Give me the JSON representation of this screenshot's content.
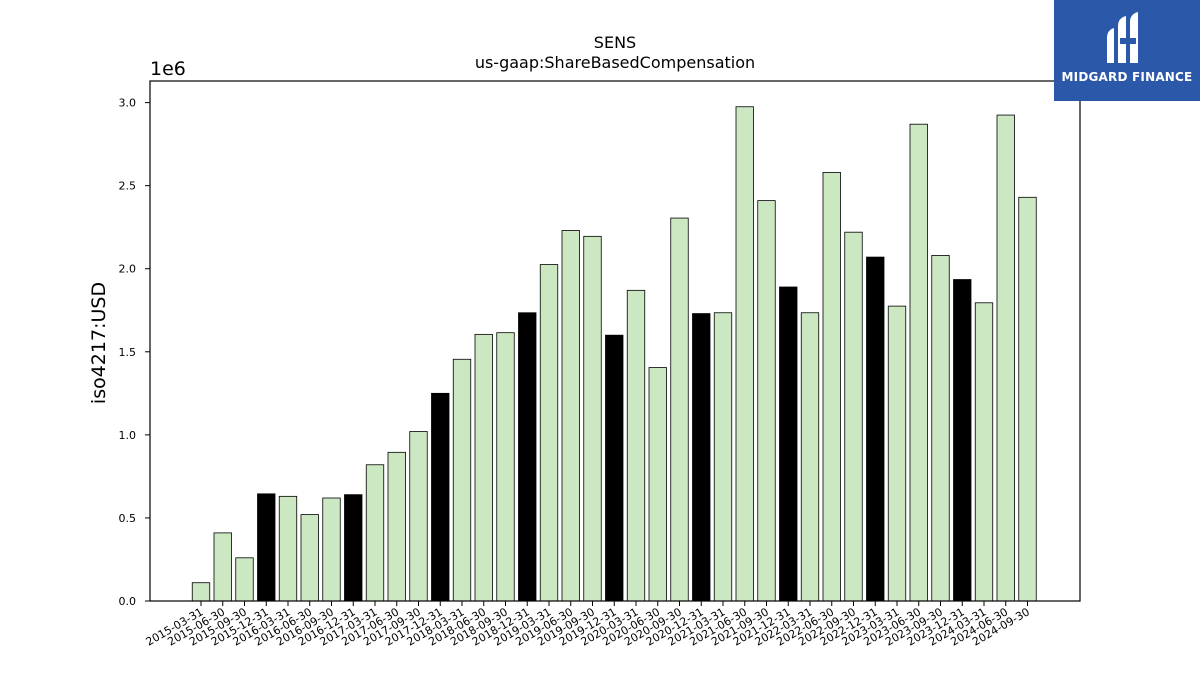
{
  "logo": {
    "text": "MIDGARD FINANCE",
    "color": "#2b58a8"
  },
  "chart_data": {
    "type": "bar",
    "title": "SENS",
    "subtitle": "us-gaap:ShareBasedCompensation",
    "xlabel": "",
    "ylabel": "iso4217:USD",
    "y_multiplier_label": "1e6",
    "ylim": [
      0,
      3130000
    ],
    "yticks": [
      0,
      500000,
      1000000,
      1500000,
      2000000,
      2500000,
      3000000
    ],
    "ytick_labels": [
      "0.0",
      "0.5",
      "1.0",
      "1.5",
      "2.0",
      "2.5",
      "3.0"
    ],
    "grid": false,
    "colors": {
      "quarter": "#cce8c3",
      "annual": "#000000",
      "edge": "#000000"
    },
    "categories": [
      "2015-03-31",
      "2015-06-30",
      "2015-09-30",
      "2015-12-31",
      "2016-03-31",
      "2016-06-30",
      "2016-09-30",
      "2016-12-31",
      "2017-03-31",
      "2017-06-30",
      "2017-09-30",
      "2017-12-31",
      "2018-03-31",
      "2018-06-30",
      "2018-09-30",
      "2018-12-31",
      "2019-03-31",
      "2019-06-30",
      "2019-09-30",
      "2019-12-31",
      "2020-03-31",
      "2020-06-30",
      "2020-09-30",
      "2020-12-31",
      "2021-03-31",
      "2021-06-30",
      "2021-09-30",
      "2021-12-31",
      "2022-03-31",
      "2022-06-30",
      "2022-09-30",
      "2022-12-31",
      "2023-03-31",
      "2023-06-30",
      "2023-09-30",
      "2023-12-31",
      "2024-03-31",
      "2024-06-30",
      "2024-09-30"
    ],
    "values": [
      110000,
      410000,
      260000,
      645000,
      630000,
      520000,
      620000,
      640000,
      820000,
      895000,
      1020000,
      1250000,
      1455000,
      1605000,
      1615000,
      1735000,
      2025000,
      2230000,
      2195000,
      1600000,
      1870000,
      1405000,
      2305000,
      1730000,
      1735000,
      2975000,
      2410000,
      1890000,
      1735000,
      2580000,
      2220000,
      2070000,
      1775000,
      2870000,
      2080000,
      1935000,
      1795000,
      2925000,
      2430000
    ],
    "annual": [
      false,
      false,
      false,
      true,
      false,
      false,
      false,
      true,
      false,
      false,
      false,
      true,
      false,
      false,
      false,
      true,
      false,
      false,
      false,
      true,
      false,
      false,
      false,
      true,
      false,
      false,
      false,
      true,
      false,
      false,
      false,
      true,
      false,
      false,
      false,
      true,
      false,
      false,
      false
    ]
  }
}
